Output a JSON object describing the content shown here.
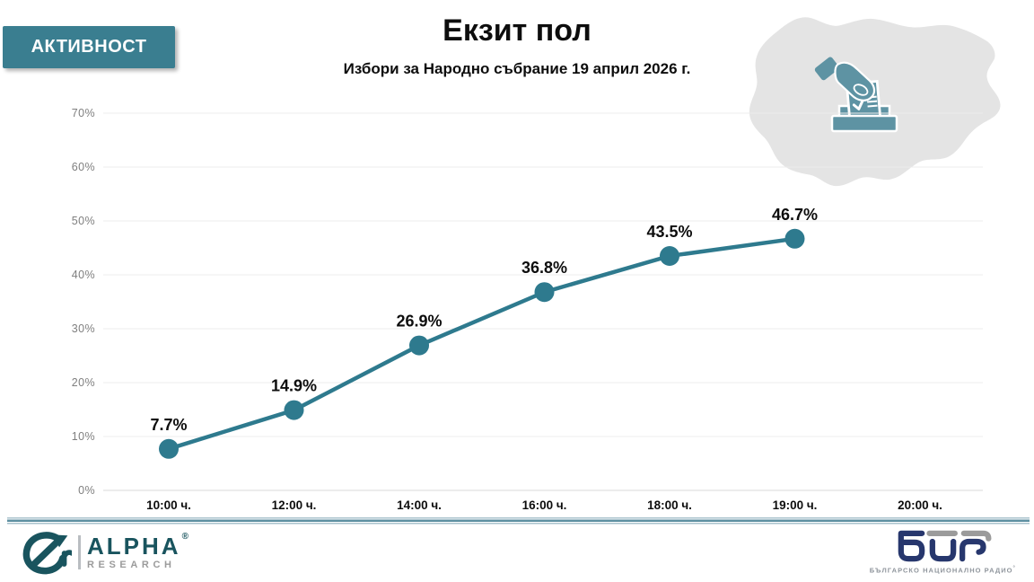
{
  "slide": {
    "badge": "АКТИВНОСТ",
    "title": "Екзит пол",
    "subtitle": "Избори за Народно събрание 19 април 2026 г."
  },
  "chart_data": {
    "type": "line",
    "title": "Екзит пол",
    "subtitle": "Избори за Народно събрание 19 април 2026 г.",
    "categories": [
      "10:00 ч.",
      "12:00 ч.",
      "14:00 ч.",
      "16:00 ч.",
      "18:00 ч.",
      "19:00 ч.",
      "20:00 ч."
    ],
    "values": [
      7.7,
      14.9,
      26.9,
      36.8,
      43.5,
      46.7,
      null
    ],
    "point_labels": [
      "7.7%",
      "14.9%",
      "26.9%",
      "36.8%",
      "43.5%",
      "46.7%"
    ],
    "xlabel": "",
    "ylabel": "",
    "ylim": [
      0,
      70
    ],
    "yticks": [
      0,
      10,
      20,
      30,
      40,
      50,
      60,
      70
    ],
    "ytick_labels": [
      "0%",
      "10%",
      "20%",
      "30%",
      "40%",
      "50%",
      "60%",
      "70%"
    ],
    "grid": true,
    "legend": "none",
    "line_color": "#2e7a8e",
    "marker": "circle"
  },
  "colors": {
    "accent_teal": "#2e7a8e",
    "badge_teal": "#3a7e90",
    "icon_teal": "#5e93a3",
    "map_gray": "#e4e4e4",
    "gridline": "#ececec",
    "axis_label_gray": "#7f7f7f",
    "alpha_teal": "#19545e",
    "bnr_navy": "#27376d"
  },
  "footer": {
    "alpha_logo": {
      "name": "ALPHA",
      "registered": "®",
      "subtitle": "RESEARCH"
    },
    "bnr_logo": {
      "caption": "БЪЛГАРСКО НАЦИОНАЛНО РАДИО",
      "mark": "°"
    }
  }
}
